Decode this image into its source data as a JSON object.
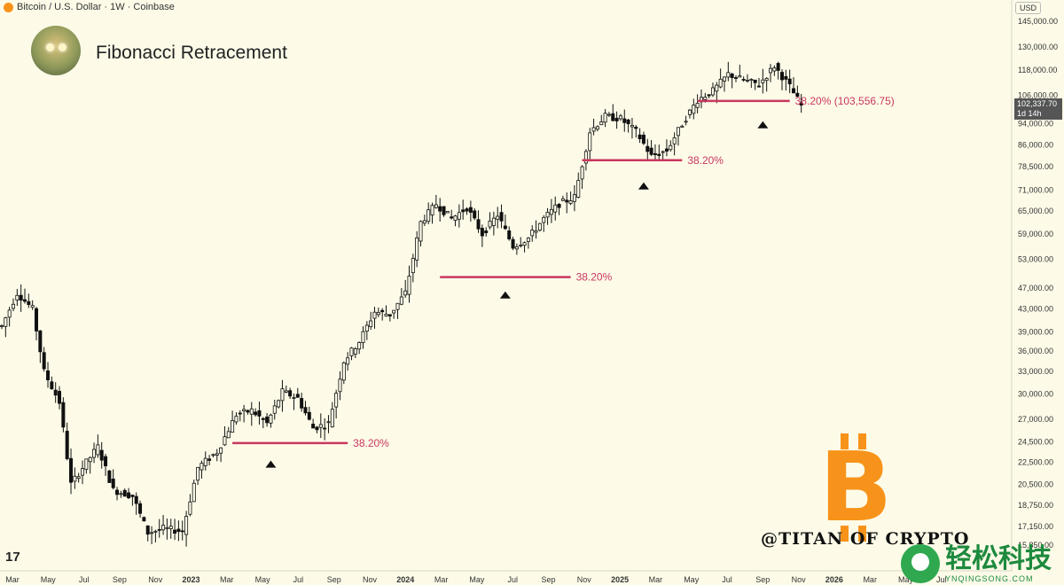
{
  "header": {
    "symbol_line": "Bitcoin / U.S. Dollar · 1W · Coinbase"
  },
  "title": "Fibonacci Retracement",
  "price_axis": {
    "currency": "USD",
    "last_price": "102,337.70",
    "countdown": "1d 14h"
  },
  "branding": {
    "handle": "@TITAN OF CRYPTO",
    "logo_text": "B",
    "tv_logo": "17",
    "watermark_cn": "轻松科技",
    "watermark_en": "YNQINGSONG.COM"
  },
  "colors": {
    "fib_line": "#c9375f",
    "fib_text": "#c9375f",
    "candle": "#111111",
    "background": "#fdfbe8",
    "logo": "#f7931a"
  },
  "chart_data": {
    "type": "candlestick",
    "title": "Fibonacci Retracement",
    "y_scale": "log",
    "y_ticks": [
      15850,
      17150,
      18750,
      20500,
      22500,
      24500,
      27000,
      30000,
      33000,
      36000,
      39000,
      43000,
      47000,
      53000,
      59000,
      65000,
      71000,
      78500,
      86000,
      94000,
      106000,
      118000,
      130000,
      145000
    ],
    "y_tick_labels": [
      "15,850.00",
      "17,150.00",
      "18,750.00",
      "20,500.00",
      "22,500.00",
      "24,500.00",
      "27,000.00",
      "30,000.00",
      "33,000.00",
      "36,000.00",
      "39,000.00",
      "43,000.00",
      "47,000.00",
      "53,000.00",
      "59,000.00",
      "65,000.00",
      "71,000.00",
      "78,500.00",
      "86,000.00",
      "94,000.00",
      "106,000.00",
      "118,000.00",
      "130,000.00",
      "145,000.00"
    ],
    "x_ticks": [
      "Mar",
      "May",
      "Jul",
      "Sep",
      "Nov",
      "2023",
      "Mar",
      "May",
      "Jul",
      "Sep",
      "Nov",
      "2024",
      "Mar",
      "May",
      "Jul",
      "Sep",
      "Nov",
      "2025",
      "Mar",
      "May",
      "Jul",
      "Sep",
      "Nov",
      "2026",
      "Mar",
      "May",
      "Jul"
    ],
    "x_tick_bold": [
      "2023",
      "2024",
      "2025",
      "2026"
    ],
    "trend_path": [
      [
        0,
        40000
      ],
      [
        4,
        46000
      ],
      [
        8,
        43000
      ],
      [
        11,
        33000
      ],
      [
        15,
        29000
      ],
      [
        18,
        20500
      ],
      [
        22,
        22500
      ],
      [
        25,
        24000
      ],
      [
        29,
        20000
      ],
      [
        34,
        19500
      ],
      [
        38,
        16700
      ],
      [
        42,
        17000
      ],
      [
        47,
        16800
      ],
      [
        51,
        22000
      ],
      [
        56,
        23500
      ],
      [
        61,
        27500
      ],
      [
        65,
        28000
      ],
      [
        69,
        26500
      ],
      [
        73,
        30300
      ],
      [
        77,
        29500
      ],
      [
        81,
        26000
      ],
      [
        85,
        26500
      ],
      [
        89,
        34500
      ],
      [
        93,
        37500
      ],
      [
        97,
        42500
      ],
      [
        101,
        42000
      ],
      [
        105,
        46000
      ],
      [
        109,
        62000
      ],
      [
        113,
        67000
      ],
      [
        117,
        63000
      ],
      [
        121,
        66000
      ],
      [
        125,
        59000
      ],
      [
        129,
        64000
      ],
      [
        133,
        56000
      ],
      [
        137,
        58000
      ],
      [
        141,
        63000
      ],
      [
        145,
        67000
      ],
      [
        149,
        69000
      ],
      [
        153,
        91000
      ],
      [
        157,
        97000
      ],
      [
        161,
        96000
      ],
      [
        165,
        91000
      ],
      [
        169,
        82000
      ],
      [
        173,
        84000
      ],
      [
        177,
        94000
      ],
      [
        181,
        104000
      ],
      [
        185,
        108000
      ],
      [
        189,
        116000
      ],
      [
        193,
        113000
      ],
      [
        197,
        111000
      ],
      [
        201,
        120000
      ],
      [
        205,
        110000
      ],
      [
        208,
        101500
      ]
    ],
    "fib_levels": [
      {
        "label": "38.20%",
        "price": 24400,
        "x0": 60,
        "x1": 90,
        "marker_x": 70,
        "marker_price": 23000
      },
      {
        "label": "38.20%",
        "price": 49200,
        "x0": 114,
        "x1": 148,
        "marker_x": 131,
        "marker_price": 47000
      },
      {
        "label": "38.20%",
        "price": 80600,
        "x0": 151,
        "x1": 177,
        "marker_x": 167,
        "marker_price": 74500
      },
      {
        "label": "38.20% (103,556.75)",
        "price": 103556.75,
        "x0": 181,
        "x1": 205,
        "marker_x": 198,
        "marker_price": 96500
      }
    ]
  }
}
